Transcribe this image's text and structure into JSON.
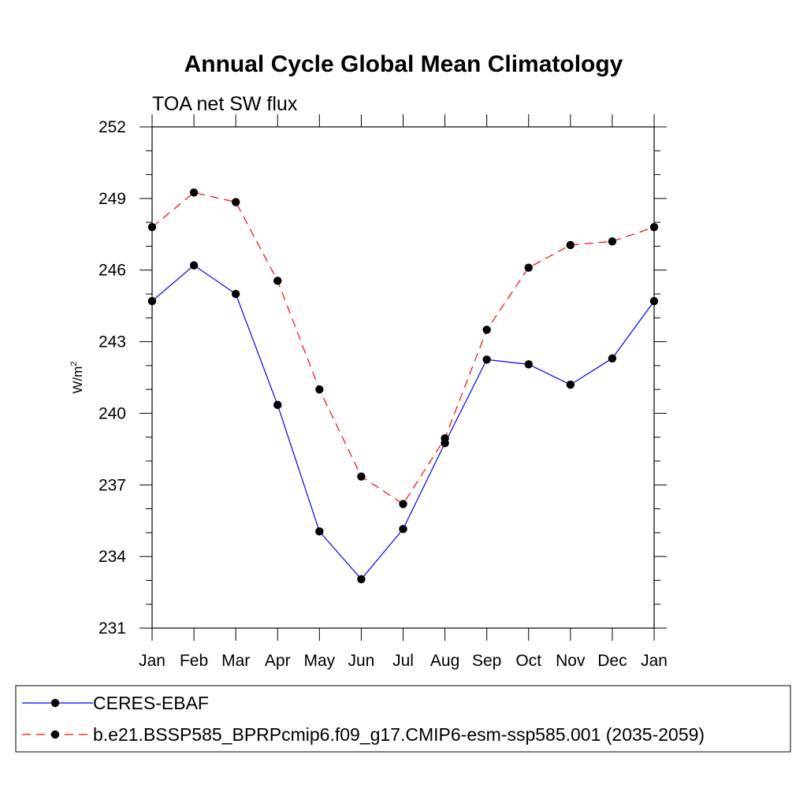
{
  "chart_data": {
    "type": "line",
    "title": "Annual Cycle Global Mean Climatology",
    "subtitle": "TOA net SW flux",
    "ylabel": "W/m",
    "ylabel_superscript": "2",
    "xlabel": "",
    "categories": [
      "Jan",
      "Feb",
      "Mar",
      "Apr",
      "May",
      "Jun",
      "Jul",
      "Aug",
      "Sep",
      "Oct",
      "Nov",
      "Dec",
      "Jan"
    ],
    "ylim": [
      231,
      252
    ],
    "yticks": [
      231,
      234,
      237,
      240,
      243,
      246,
      249,
      252
    ],
    "y_minor_step": 1,
    "grid": false,
    "legend_position": "bottom",
    "series": [
      {
        "name": "CERES-EBAF",
        "color": "#0000ff",
        "dash": "solid",
        "marker": "circle",
        "values": [
          244.7,
          246.2,
          245.0,
          240.35,
          235.05,
          233.05,
          235.15,
          238.75,
          242.25,
          242.05,
          241.2,
          242.3,
          244.7
        ]
      },
      {
        "name": "b.e21.BSSP585_BPRPcmip6.f09_g17.CMIP6-esm-ssp585.001 (2035-2059)",
        "color": "#ff0000",
        "dash": "dashed",
        "marker": "circle",
        "values": [
          247.8,
          249.25,
          248.85,
          245.55,
          241.0,
          237.35,
          236.2,
          238.95,
          243.5,
          246.1,
          247.05,
          247.2,
          247.8
        ]
      }
    ]
  }
}
